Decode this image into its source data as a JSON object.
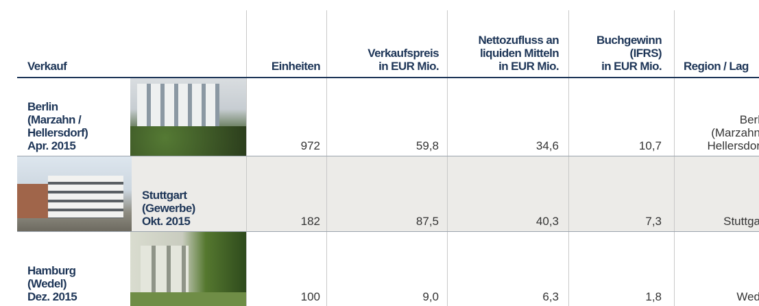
{
  "header": {
    "columns": [
      [
        "Verkauf"
      ],
      [
        "Einheiten"
      ],
      [
        "Verkaufspreis",
        "in EUR Mio."
      ],
      [
        "Nettozufluss an",
        "liquiden Mitteln",
        "in EUR Mio."
      ],
      [
        "Buchgewinn",
        "(IFRS)",
        "in EUR Mio."
      ],
      [
        "Region / Lag"
      ]
    ]
  },
  "table": {
    "rows": [
      {
        "name": [
          "Berlin",
          "(Marzahn /",
          "Hellersdorf)",
          "Apr. 2015"
        ],
        "units": "972",
        "price": "59,8",
        "inflow": "34,6",
        "gain": "10,7",
        "region": [
          "Berl",
          "(Marzahn",
          "Hellersdor"
        ]
      },
      {
        "name": [
          "Stuttgart",
          "(Gewerbe)",
          "Okt. 2015"
        ],
        "units": "182",
        "price": "87,5",
        "inflow": "40,3",
        "gain": "7,3",
        "region": [
          "Stuttga"
        ]
      },
      {
        "name": [
          "Hamburg",
          "(Wedel)",
          "Dez. 2015"
        ],
        "units": "100",
        "price": "9,0",
        "inflow": "6,3",
        "gain": "1,8",
        "region": [
          "Wed"
        ]
      }
    ]
  }
}
